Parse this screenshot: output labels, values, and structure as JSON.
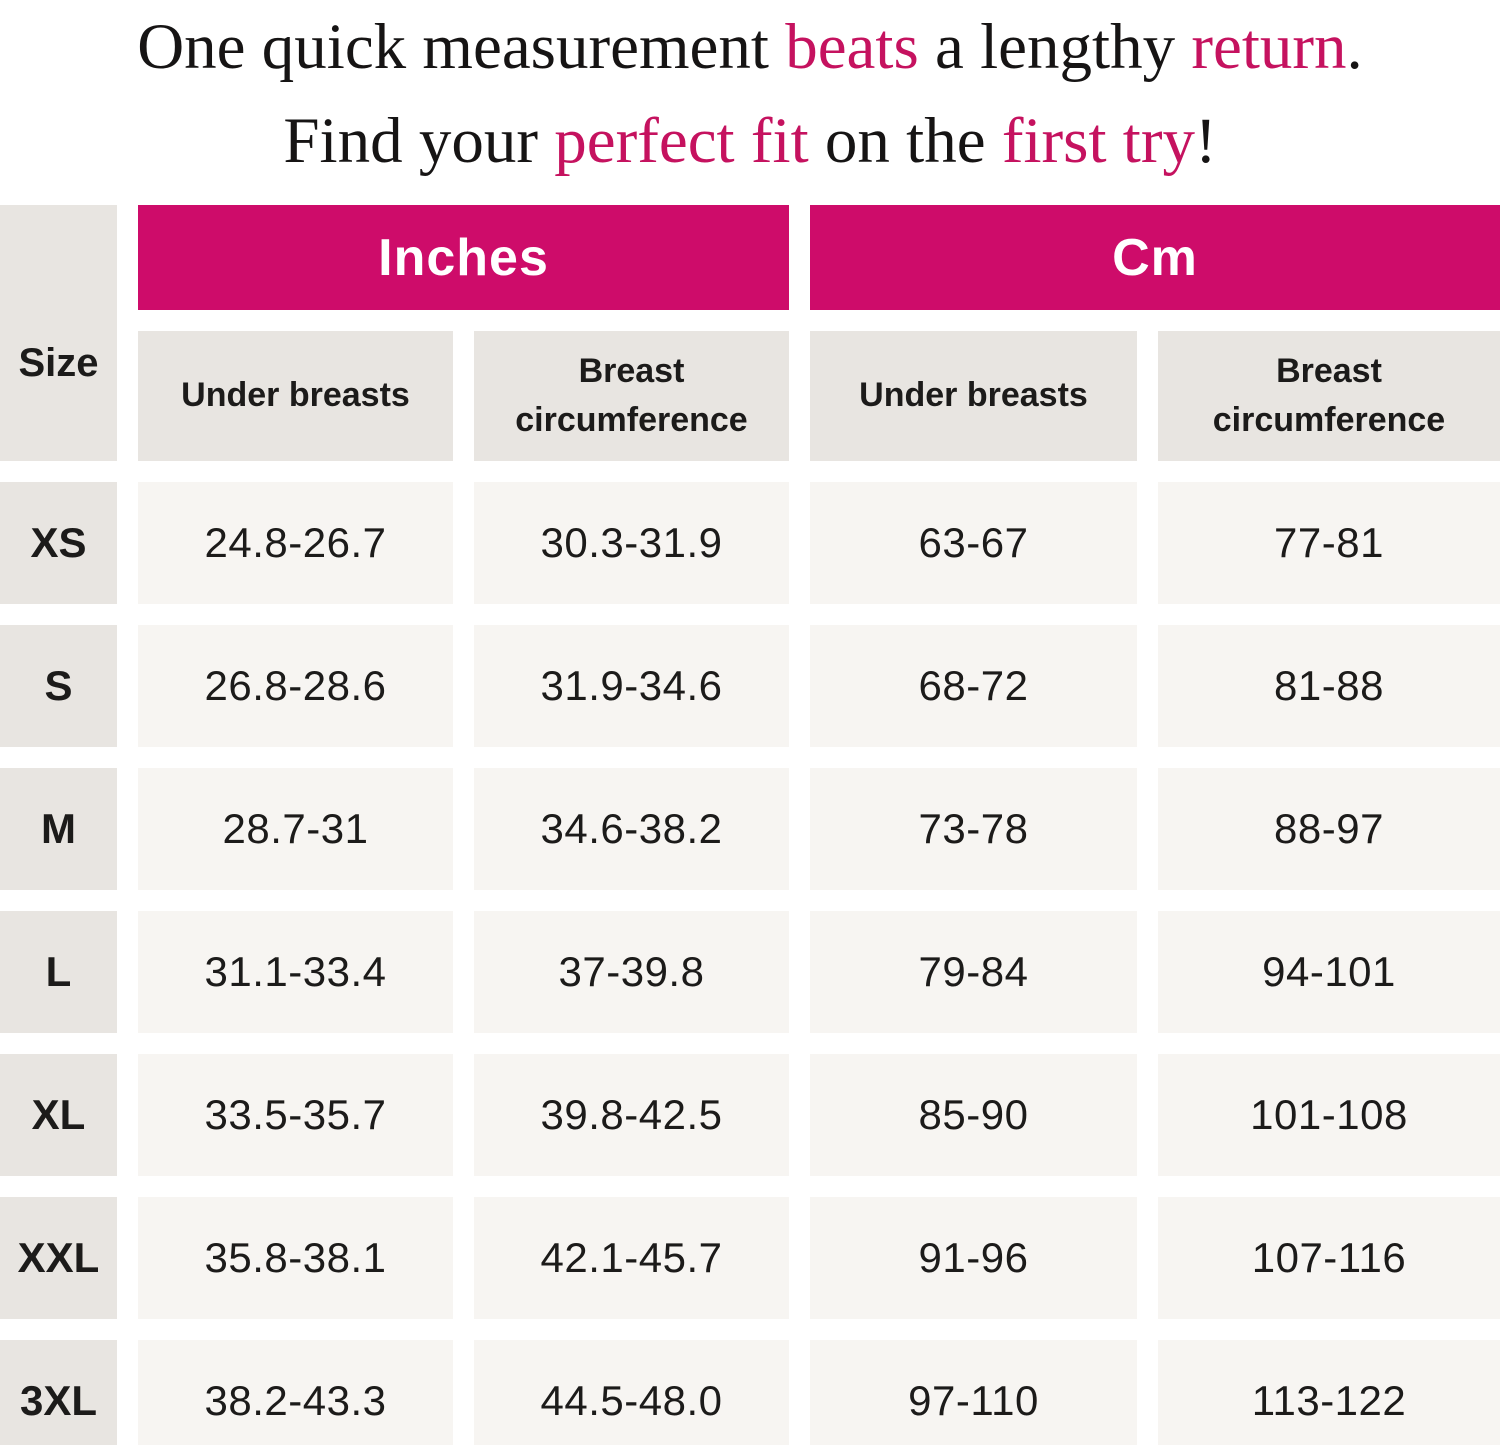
{
  "colors": {
    "heading_accent": "#c5125f",
    "table_pink": "#ce0c6a",
    "header_gray": "#e8e5e1",
    "cell_bg": "#f7f5f2",
    "heading_text": "#161414",
    "table_text": "#1c1b1a"
  },
  "heading": {
    "l1_p1": "One quick measurement ",
    "l1_a1": "beats",
    "l1_p2": " a lengthy ",
    "l1_a2": "return",
    "l1_p3": ".",
    "l2_p1": "Find your ",
    "l2_a1": "perfect fit",
    "l2_p2": " on the ",
    "l2_a2": "first try",
    "l2_p3": "!"
  },
  "table": {
    "size_header": "Size",
    "unit_headers": {
      "inches": "Inches",
      "cm": "Cm"
    },
    "sub_headers": {
      "inches_under": "Under breasts",
      "inches_circ": "Breast circumference",
      "cm_under": "Under breasts",
      "cm_circ": "Breast circumference"
    },
    "rows": [
      {
        "size": "XS",
        "in_under": "24.8-26.7",
        "in_circ": "30.3-31.9",
        "cm_under": "63-67",
        "cm_circ": "77-81"
      },
      {
        "size": "S",
        "in_under": "26.8-28.6",
        "in_circ": "31.9-34.6",
        "cm_under": "68-72",
        "cm_circ": "81-88"
      },
      {
        "size": "M",
        "in_under": "28.7-31",
        "in_circ": "34.6-38.2",
        "cm_under": "73-78",
        "cm_circ": "88-97"
      },
      {
        "size": "L",
        "in_under": "31.1-33.4",
        "in_circ": "37-39.8",
        "cm_under": "79-84",
        "cm_circ": "94-101"
      },
      {
        "size": "XL",
        "in_under": "33.5-35.7",
        "in_circ": "39.8-42.5",
        "cm_under": "85-90",
        "cm_circ": "101-108"
      },
      {
        "size": "XXL",
        "in_under": "35.8-38.1",
        "in_circ": "42.1-45.7",
        "cm_under": "91-96",
        "cm_circ": "107-116"
      },
      {
        "size": "3XL",
        "in_under": "38.2-43.3",
        "in_circ": "44.5-48.0",
        "cm_under": "97-110",
        "cm_circ": "113-122"
      }
    ]
  },
  "chart_data": {
    "type": "table",
    "title": "One quick measurement beats a lengthy return. Find your perfect fit on the first try!",
    "column_groups": [
      "Inches",
      "Cm"
    ],
    "columns": [
      "Size",
      "Inches - Under breasts",
      "Inches - Breast circumference",
      "Cm - Under breasts",
      "Cm - Breast circumference"
    ],
    "rows": [
      [
        "XS",
        "24.8-26.7",
        "30.3-31.9",
        "63-67",
        "77-81"
      ],
      [
        "S",
        "26.8-28.6",
        "31.9-34.6",
        "68-72",
        "81-88"
      ],
      [
        "M",
        "28.7-31",
        "34.6-38.2",
        "73-78",
        "88-97"
      ],
      [
        "L",
        "31.1-33.4",
        "37-39.8",
        "79-84",
        "94-101"
      ],
      [
        "XL",
        "33.5-35.7",
        "39.8-42.5",
        "85-90",
        "101-108"
      ],
      [
        "XXL",
        "35.8-38.1",
        "42.1-45.7",
        "91-96",
        "107-116"
      ],
      [
        "3XL",
        "38.2-43.3",
        "44.5-48.0",
        "97-110",
        "113-122"
      ]
    ]
  }
}
